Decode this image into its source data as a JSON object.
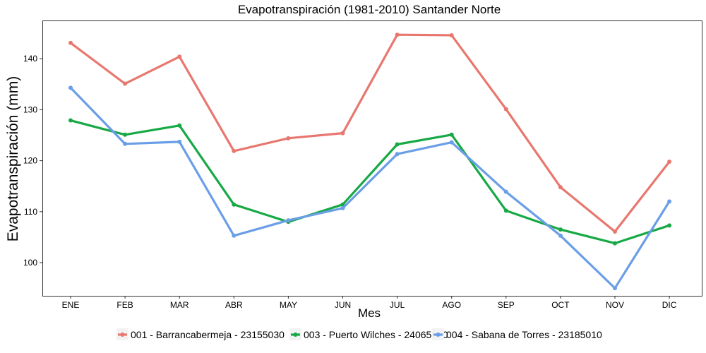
{
  "chart_data": {
    "type": "line",
    "title": "Evapotranspiración (1981-2010)  Santander Norte",
    "xlabel": "Mes",
    "ylabel": "Evapotranspiración  (mm)",
    "categories": [
      "ENE",
      "FEB",
      "MAR",
      "ABR",
      "MAY",
      "JUN",
      "JUL",
      "AGO",
      "SEP",
      "OCT",
      "NOV",
      "DIC"
    ],
    "yticks": [
      100,
      110,
      120,
      130,
      140
    ],
    "ylim": [
      93.5,
      147.5
    ],
    "grid": false,
    "legend_position": "bottom",
    "series": [
      {
        "name": "001 - Barrancabermeja - 23155030",
        "color": "#E8776F",
        "values": [
          143.1,
          135.1,
          140.4,
          121.9,
          124.4,
          125.4,
          144.7,
          144.6,
          130.1,
          114.8,
          106.1,
          119.8
        ]
      },
      {
        "name": "003 - Puerto Wilches - 24065010",
        "color": "#17A945",
        "values": [
          127.9,
          125.1,
          126.9,
          111.4,
          108.0,
          111.4,
          123.2,
          125.1,
          110.2,
          106.5,
          103.8,
          107.3
        ]
      },
      {
        "name": "004 - Sabana de Torres - 23185010",
        "color": "#6A9EE6",
        "values": [
          134.3,
          123.3,
          123.7,
          105.3,
          108.3,
          110.7,
          121.3,
          123.6,
          113.9,
          105.3,
          95.0,
          112.0
        ]
      }
    ]
  }
}
